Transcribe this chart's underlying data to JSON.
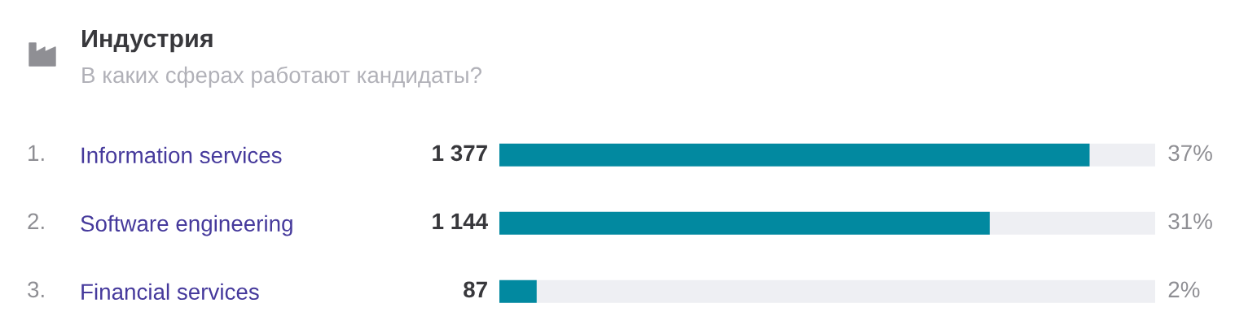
{
  "chart_data": {
    "type": "bar",
    "orientation": "horizontal",
    "title": "Индустрия",
    "subtitle": "В каких сферах работают кандидаты?",
    "categories": [
      "Information services",
      "Software engineering",
      "Financial services"
    ],
    "values": [
      1377,
      1144,
      87
    ],
    "color": "#0289a0",
    "value_labels": [
      "1 377",
      "1 144",
      "87"
    ],
    "xlim": [
      0,
      1530
    ],
    "tick_labels": "y",
    "annotations": [
      "1.",
      "2.",
      "3.",
      "37%",
      "31%",
      "2%"
    ]
  }
}
